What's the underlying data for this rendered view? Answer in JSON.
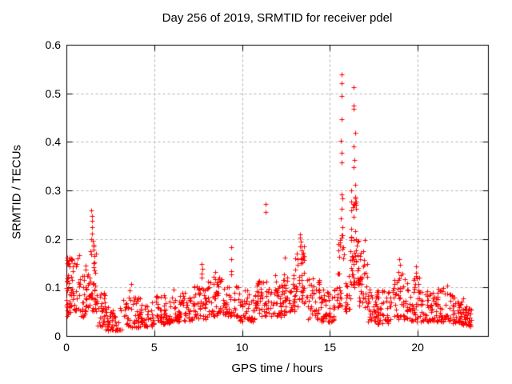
{
  "chart_data": {
    "type": "scatter",
    "title": "Day 256 of 2019, SRMTID for receiver pdel",
    "xlabel": "GPS time / hours",
    "ylabel": "SRMTID / TECUs",
    "xlim": [
      0,
      24
    ],
    "ylim": [
      0,
      0.6
    ],
    "xticks": [
      0,
      5,
      10,
      15,
      20
    ],
    "yticks": [
      0,
      0.1,
      0.2,
      0.3,
      0.4,
      0.5,
      0.6
    ],
    "grid": true,
    "legend": "none",
    "marker": {
      "shape": "plus",
      "color": "#ff0000",
      "size": 7
    },
    "axis_color": "#000000",
    "grid_color": "#b0b0b0",
    "background": "#ffffff",
    "seed": 20190256,
    "y_bias_power": 1.5,
    "density_segments": {
      "columns": [
        "x_start",
        "x_end",
        "count",
        "y_min",
        "y_max"
      ],
      "rows": [
        [
          0.0,
          0.15,
          22,
          0.04,
          0.16
        ],
        [
          0.15,
          0.7,
          34,
          0.05,
          0.165
        ],
        [
          0.7,
          1.1,
          26,
          0.04,
          0.125
        ],
        [
          1.1,
          1.35,
          22,
          0.055,
          0.155
        ],
        [
          1.35,
          1.75,
          30,
          0.05,
          0.185
        ],
        [
          1.75,
          2.2,
          28,
          0.02,
          0.09
        ],
        [
          2.2,
          3.2,
          50,
          0.012,
          0.06
        ],
        [
          3.2,
          4.2,
          50,
          0.018,
          0.08
        ],
        [
          4.2,
          5.0,
          42,
          0.02,
          0.07
        ],
        [
          5.0,
          6.2,
          60,
          0.025,
          0.085
        ],
        [
          6.2,
          7.2,
          55,
          0.03,
          0.09
        ],
        [
          7.2,
          8.0,
          48,
          0.035,
          0.11
        ],
        [
          8.0,
          9.0,
          55,
          0.04,
          0.12
        ],
        [
          9.0,
          9.8,
          42,
          0.04,
          0.11
        ],
        [
          9.8,
          10.8,
          52,
          0.03,
          0.095
        ],
        [
          10.8,
          11.6,
          45,
          0.04,
          0.115
        ],
        [
          11.6,
          12.4,
          45,
          0.04,
          0.12
        ],
        [
          12.4,
          13.0,
          38,
          0.05,
          0.13
        ],
        [
          13.0,
          13.6,
          40,
          0.06,
          0.2
        ],
        [
          13.6,
          14.5,
          45,
          0.035,
          0.12
        ],
        [
          14.5,
          15.4,
          48,
          0.03,
          0.1
        ],
        [
          15.4,
          15.8,
          28,
          0.06,
          0.21
        ],
        [
          15.8,
          16.15,
          22,
          0.05,
          0.13
        ],
        [
          16.15,
          16.65,
          55,
          0.1,
          0.3
        ],
        [
          16.65,
          17.15,
          35,
          0.06,
          0.18
        ],
        [
          17.15,
          17.7,
          38,
          0.03,
          0.1
        ],
        [
          17.7,
          18.4,
          40,
          0.025,
          0.095
        ],
        [
          18.4,
          19.3,
          45,
          0.035,
          0.13
        ],
        [
          19.3,
          20.1,
          48,
          0.03,
          0.12
        ],
        [
          20.1,
          21.0,
          48,
          0.03,
          0.095
        ],
        [
          21.0,
          21.9,
          50,
          0.03,
          0.1
        ],
        [
          21.9,
          22.6,
          45,
          0.025,
          0.085
        ],
        [
          22.6,
          23.05,
          32,
          0.02,
          0.065
        ]
      ]
    },
    "outlier_points": {
      "columns": [
        "x",
        "y"
      ],
      "rows": [
        [
          0.05,
          0.162
        ],
        [
          0.08,
          0.15
        ],
        [
          0.12,
          0.155
        ],
        [
          0.3,
          0.158
        ],
        [
          0.45,
          0.15
        ],
        [
          0.55,
          0.143
        ],
        [
          0.73,
          0.166
        ],
        [
          1.38,
          0.174
        ],
        [
          1.42,
          0.259
        ],
        [
          1.44,
          0.247
        ],
        [
          1.45,
          0.237
        ],
        [
          1.45,
          0.225
        ],
        [
          1.47,
          0.211
        ],
        [
          1.42,
          0.2
        ],
        [
          1.5,
          0.196
        ],
        [
          1.53,
          0.188
        ],
        [
          1.55,
          0.178
        ],
        [
          1.58,
          0.165
        ],
        [
          1.6,
          0.152
        ],
        [
          3.6,
          0.094
        ],
        [
          3.68,
          0.107
        ],
        [
          6.08,
          0.096
        ],
        [
          7.7,
          0.148
        ],
        [
          7.72,
          0.138
        ],
        [
          7.68,
          0.128
        ],
        [
          7.7,
          0.12
        ],
        [
          8.45,
          0.132
        ],
        [
          8.4,
          0.122
        ],
        [
          9.36,
          0.183
        ],
        [
          9.36,
          0.158
        ],
        [
          9.36,
          0.134
        ],
        [
          9.38,
          0.127
        ],
        [
          11.32,
          0.272
        ],
        [
          11.32,
          0.256
        ],
        [
          11.9,
          0.125
        ],
        [
          11.95,
          0.112
        ],
        [
          12.45,
          0.162
        ],
        [
          13.3,
          0.21
        ],
        [
          13.32,
          0.202
        ],
        [
          13.35,
          0.194
        ],
        [
          13.3,
          0.185
        ],
        [
          13.38,
          0.176
        ],
        [
          13.42,
          0.168
        ],
        [
          13.35,
          0.16
        ],
        [
          13.45,
          0.152
        ],
        [
          15.66,
          0.539
        ],
        [
          15.68,
          0.521
        ],
        [
          15.66,
          0.494
        ],
        [
          15.66,
          0.446
        ],
        [
          15.64,
          0.403
        ],
        [
          15.66,
          0.378
        ],
        [
          15.66,
          0.357
        ],
        [
          15.68,
          0.292
        ],
        [
          15.7,
          0.284
        ],
        [
          15.66,
          0.262
        ],
        [
          15.64,
          0.243
        ],
        [
          15.7,
          0.225
        ],
        [
          16.33,
          0.513
        ],
        [
          16.36,
          0.474
        ],
        [
          16.33,
          0.468
        ],
        [
          16.42,
          0.419
        ],
        [
          16.36,
          0.39
        ],
        [
          16.38,
          0.362
        ],
        [
          16.36,
          0.347
        ],
        [
          16.42,
          0.311
        ],
        [
          16.45,
          0.286
        ],
        [
          16.5,
          0.27
        ],
        [
          16.47,
          0.262
        ],
        [
          16.9,
          0.175
        ],
        [
          17.0,
          0.198
        ],
        [
          18.95,
          0.158
        ],
        [
          19.0,
          0.147
        ],
        [
          18.9,
          0.132
        ],
        [
          19.05,
          0.125
        ],
        [
          19.9,
          0.143
        ],
        [
          19.88,
          0.131
        ],
        [
          19.92,
          0.124
        ],
        [
          19.95,
          0.118
        ],
        [
          21.7,
          0.104
        ]
      ]
    }
  }
}
